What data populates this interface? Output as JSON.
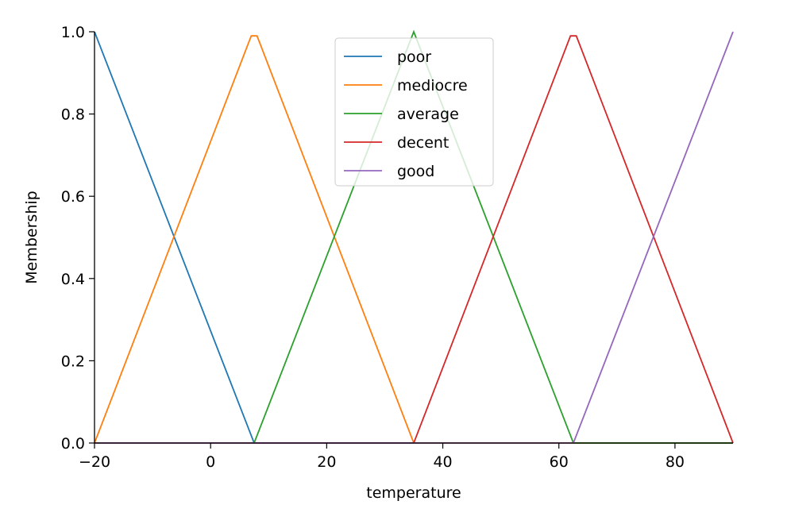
{
  "chart_data": {
    "type": "line",
    "xlabel": "temperature",
    "ylabel": "Membership",
    "xlim": [
      -20,
      90
    ],
    "ylim": [
      0,
      1.0
    ],
    "x_ticks": [
      -20,
      0,
      20,
      40,
      60,
      80
    ],
    "x_tick_labels": [
      "−20",
      "0",
      "20",
      "40",
      "60",
      "80"
    ],
    "y_ticks": [
      0,
      0.2,
      0.4,
      0.6,
      0.8,
      1.0
    ],
    "y_tick_labels": [
      "0.0",
      "0.2",
      "0.4",
      "0.6",
      "0.8",
      "1.0"
    ],
    "grid": false,
    "legend_position": "top-center",
    "series": [
      {
        "name": "poor",
        "color": "#1f77b4",
        "x": [
          -20,
          7.5,
          90
        ],
        "y": [
          1.0,
          0.0,
          0.0
        ]
      },
      {
        "name": "mediocre",
        "color": "#ff7f0e",
        "x": [
          -20,
          7,
          8,
          35,
          90
        ],
        "y": [
          0.0,
          0.99,
          0.99,
          0.0,
          0.0
        ]
      },
      {
        "name": "average",
        "color": "#2ca02c",
        "x": [
          -20,
          7.5,
          35,
          62.5,
          90
        ],
        "y": [
          0.0,
          0.0,
          1.0,
          0.0,
          0.0
        ]
      },
      {
        "name": "decent",
        "color": "#d62728",
        "x": [
          -20,
          35,
          62,
          63,
          90
        ],
        "y": [
          0.0,
          0.0,
          0.99,
          0.99,
          0.0
        ]
      },
      {
        "name": "good",
        "color": "#9467bd",
        "x": [
          -20,
          62.5,
          90
        ],
        "y": [
          0.0,
          0.0,
          1.0
        ]
      }
    ]
  }
}
